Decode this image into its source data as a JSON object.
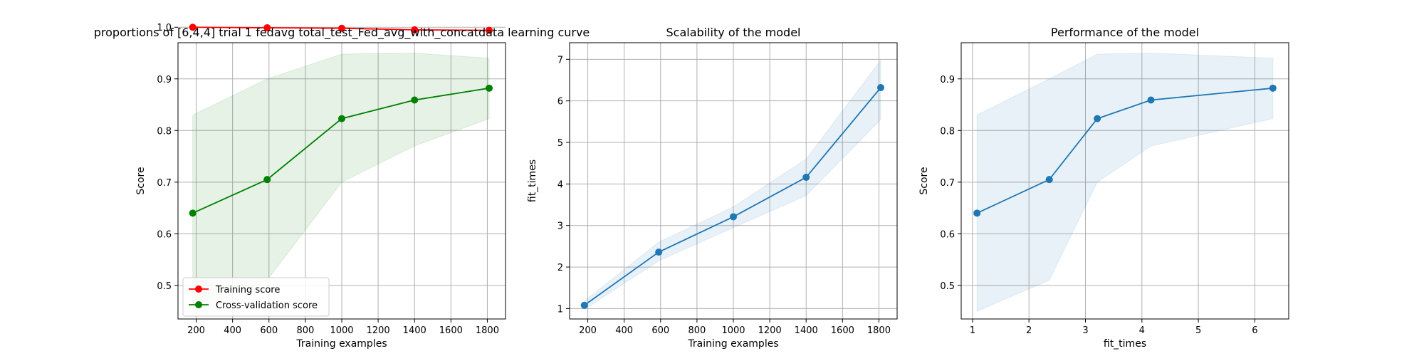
{
  "chart_data": [
    {
      "type": "line",
      "title": "proportions of [6,4,4] trial 1 fedavg total_test_Fed_avg_with_concatdata learning curve",
      "xlabel": "Training examples",
      "ylabel": "Score",
      "xlim": [
        100,
        1900
      ],
      "ylim": [
        0.435,
        0.97
      ],
      "xticks": [
        200,
        400,
        600,
        800,
        1000,
        1200,
        1400,
        1600,
        1800
      ],
      "xtick_labels": [
        "200",
        "400",
        "600",
        "800",
        "1000",
        "1200",
        "1400",
        "1600",
        "1800"
      ],
      "yticks": [
        0.5,
        0.6,
        0.7,
        0.8,
        0.9,
        1.0
      ],
      "ytick_labels": [
        "0.5",
        "0.6",
        "0.7",
        "0.8",
        "0.9",
        "1.0"
      ],
      "grid": true,
      "legend_position": "lower-left",
      "x": [
        181,
        590,
        1000,
        1400,
        1810
      ],
      "series": [
        {
          "name": "Training score",
          "color": "#ff0000",
          "values": [
            1.0,
            0.999,
            0.998,
            0.995,
            0.994
          ],
          "band_lower": [
            1.0,
            0.999,
            0.998,
            0.995,
            0.994
          ],
          "band_upper": [
            1.0,
            0.999,
            0.998,
            0.995,
            0.994
          ]
        },
        {
          "name": "Cross-validation score",
          "color": "#008000",
          "values": [
            0.64,
            0.705,
            0.823,
            0.859,
            0.882
          ],
          "band_lower": [
            0.45,
            0.51,
            0.7,
            0.77,
            0.823
          ],
          "band_upper": [
            0.83,
            0.9,
            0.948,
            0.95,
            0.94
          ]
        }
      ]
    },
    {
      "type": "line",
      "title": "Scalability of the model",
      "xlabel": "Training examples",
      "ylabel": "fit_times",
      "xlim": [
        100,
        1900
      ],
      "ylim": [
        0.75,
        7.4
      ],
      "xticks": [
        200,
        400,
        600,
        800,
        1000,
        1200,
        1400,
        1600,
        1800
      ],
      "xtick_labels": [
        "200",
        "400",
        "600",
        "800",
        "1000",
        "1200",
        "1400",
        "1600",
        "1800"
      ],
      "yticks": [
        1,
        2,
        3,
        4,
        5,
        6,
        7
      ],
      "ytick_labels": [
        "1",
        "2",
        "3",
        "4",
        "5",
        "6",
        "7"
      ],
      "grid": true,
      "x": [
        181,
        590,
        1000,
        1400,
        1810
      ],
      "series": [
        {
          "color": "#1f77b4",
          "values": [
            1.08,
            2.36,
            3.21,
            4.16,
            6.32
          ],
          "band_lower": [
            0.98,
            2.15,
            2.95,
            3.72,
            5.55
          ],
          "band_upper": [
            1.18,
            2.6,
            3.45,
            4.6,
            6.98
          ]
        }
      ]
    },
    {
      "type": "line",
      "title": "Performance of the model",
      "xlabel": "fit_times",
      "ylabel": "Score",
      "xlim": [
        0.8,
        6.6
      ],
      "ylim": [
        0.435,
        0.97
      ],
      "xticks": [
        1,
        2,
        3,
        4,
        5,
        6
      ],
      "xtick_labels": [
        "1",
        "2",
        "3",
        "4",
        "5",
        "6"
      ],
      "yticks": [
        0.5,
        0.6,
        0.7,
        0.8,
        0.9
      ],
      "ytick_labels": [
        "0.5",
        "0.6",
        "0.7",
        "0.8",
        "0.9"
      ],
      "grid": true,
      "x": [
        1.08,
        2.36,
        3.21,
        4.16,
        6.32
      ],
      "series": [
        {
          "color": "#1f77b4",
          "values": [
            0.64,
            0.705,
            0.823,
            0.859,
            0.882
          ],
          "band_lower": [
            0.45,
            0.51,
            0.7,
            0.77,
            0.823
          ],
          "band_upper": [
            0.83,
            0.9,
            0.948,
            0.95,
            0.94
          ]
        }
      ]
    }
  ]
}
